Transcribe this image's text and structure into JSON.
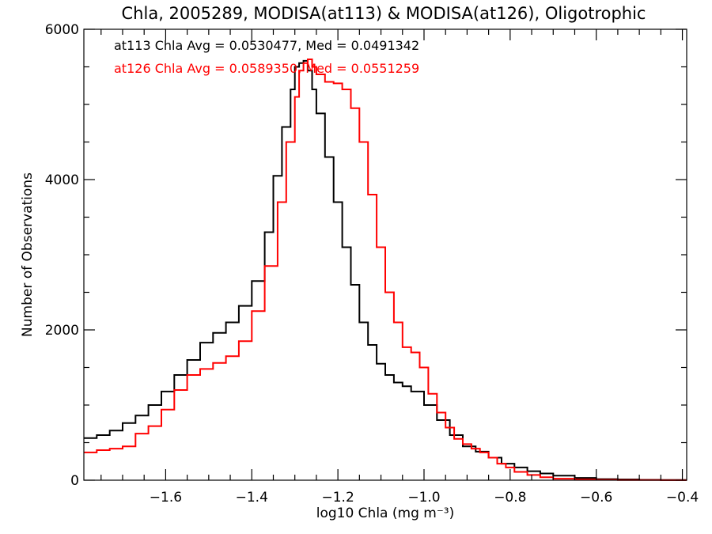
{
  "chart_data": {
    "type": "line",
    "step": true,
    "title": "Chla, 2005289, MODISA(at113) & MODISA(at126), Oligotrophic",
    "xlabel": "log10 Chla (mg m⁻³)",
    "ylabel": "Number of Observations",
    "xlim": [
      -1.79,
      -0.39
    ],
    "ylim": [
      0,
      6000
    ],
    "xticks": [
      -1.6,
      -1.4,
      -1.2,
      -1.0,
      -0.8,
      -0.6,
      -0.4
    ],
    "xtick_labels": [
      "−1.6",
      "−1.4",
      "−1.2",
      "−1.0",
      "−0.8",
      "−0.6",
      "−0.4"
    ],
    "yticks": [
      0,
      2000,
      4000,
      6000
    ],
    "ytick_labels": [
      "0",
      "2000",
      "4000",
      "6000"
    ],
    "grid": false,
    "annotations": [
      {
        "text": "at113 Chla Avg = 0.0530477, Med = 0.0491342",
        "color": "#000000"
      },
      {
        "text": "at126 Chla Avg = 0.0589350, Med = 0.0551259",
        "color": "#ff0000"
      }
    ],
    "series": [
      {
        "name": "at113",
        "color": "#000000",
        "x": [
          -1.79,
          -1.76,
          -1.73,
          -1.7,
          -1.67,
          -1.64,
          -1.61,
          -1.58,
          -1.55,
          -1.52,
          -1.49,
          -1.46,
          -1.43,
          -1.4,
          -1.37,
          -1.35,
          -1.33,
          -1.31,
          -1.3,
          -1.29,
          -1.28,
          -1.27,
          -1.26,
          -1.25,
          -1.23,
          -1.21,
          -1.19,
          -1.17,
          -1.15,
          -1.13,
          -1.11,
          -1.09,
          -1.07,
          -1.05,
          -1.03,
          -1.0,
          -0.97,
          -0.94,
          -0.91,
          -0.88,
          -0.85,
          -0.82,
          -0.79,
          -0.76,
          -0.73,
          -0.7,
          -0.65,
          -0.6,
          -0.55,
          -0.5,
          -0.45,
          -0.4
        ],
        "y": [
          560,
          600,
          660,
          760,
          860,
          1000,
          1180,
          1400,
          1600,
          1830,
          1960,
          2100,
          2320,
          2650,
          3300,
          4050,
          4700,
          5200,
          5500,
          5550,
          5580,
          5450,
          5200,
          4880,
          4300,
          3700,
          3100,
          2600,
          2100,
          1800,
          1550,
          1400,
          1300,
          1250,
          1180,
          1000,
          800,
          600,
          450,
          380,
          300,
          220,
          170,
          120,
          90,
          60,
          30,
          15,
          10,
          5,
          3,
          2
        ]
      },
      {
        "name": "at126",
        "color": "#ff0000",
        "x": [
          -1.79,
          -1.76,
          -1.73,
          -1.7,
          -1.67,
          -1.64,
          -1.61,
          -1.58,
          -1.55,
          -1.52,
          -1.49,
          -1.46,
          -1.43,
          -1.4,
          -1.37,
          -1.34,
          -1.32,
          -1.3,
          -1.29,
          -1.28,
          -1.27,
          -1.26,
          -1.25,
          -1.23,
          -1.21,
          -1.19,
          -1.17,
          -1.15,
          -1.13,
          -1.11,
          -1.09,
          -1.07,
          -1.05,
          -1.03,
          -1.01,
          -0.99,
          -0.97,
          -0.95,
          -0.93,
          -0.91,
          -0.89,
          -0.87,
          -0.85,
          -0.83,
          -0.81,
          -0.79,
          -0.76,
          -0.73,
          -0.7,
          -0.65,
          -0.6,
          -0.55,
          -0.5,
          -0.45,
          -0.4
        ],
        "y": [
          370,
          400,
          420,
          450,
          620,
          720,
          940,
          1200,
          1400,
          1480,
          1560,
          1650,
          1850,
          2250,
          2850,
          3700,
          4500,
          5100,
          5450,
          5550,
          5600,
          5500,
          5400,
          5300,
          5280,
          5200,
          4950,
          4500,
          3800,
          3100,
          2500,
          2100,
          1770,
          1700,
          1500,
          1150,
          900,
          700,
          550,
          480,
          420,
          370,
          300,
          220,
          170,
          110,
          70,
          40,
          20,
          10,
          5,
          3,
          2,
          1,
          1
        ]
      }
    ]
  }
}
